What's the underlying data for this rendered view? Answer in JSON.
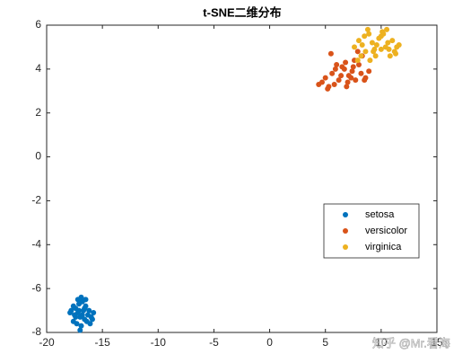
{
  "chart_data": {
    "type": "scatter",
    "title": "t-SNE二维分布",
    "xlim": [
      -20,
      15
    ],
    "xticks": [
      -20,
      -15,
      -10,
      -5,
      0,
      5,
      10,
      15
    ],
    "ylim": [
      -8,
      6
    ],
    "yticks": [
      -8,
      -6,
      -4,
      -2,
      0,
      2,
      4,
      6
    ],
    "legend": "east",
    "box": true,
    "series": [
      {
        "name": "setosa",
        "color": "#0072BD",
        "x": [
          -17.5,
          -17.2,
          -16.8,
          -16.5,
          -16.2,
          -17.9,
          -17.6,
          -17.0,
          -16.6,
          -16.3,
          -17.4,
          -17.1,
          -16.7,
          -16.0,
          -15.8,
          -17.8,
          -17.3,
          -16.9,
          -16.4,
          -16.1,
          -17.6,
          -17.2,
          -16.8,
          -16.5,
          -17.0,
          -16.6,
          -15.9,
          -17.4,
          -16.9,
          -17.1
        ],
        "values": [
          -7.2,
          -6.5,
          -6.6,
          -6.8,
          -7.0,
          -7.1,
          -7.5,
          -7.3,
          -7.4,
          -7.2,
          -6.9,
          -6.7,
          -7.0,
          -7.3,
          -7.1,
          -7.0,
          -7.6,
          -7.7,
          -7.5,
          -7.6,
          -6.8,
          -7.1,
          -7.2,
          -6.5,
          -7.9,
          -6.9,
          -7.4,
          -7.3,
          -6.4,
          -7.0
        ]
      },
      {
        "name": "versicolor",
        "color": "#D95319",
        "x": [
          4.4,
          4.7,
          5.0,
          5.3,
          5.6,
          5.9,
          6.2,
          6.5,
          6.8,
          7.1,
          7.4,
          7.7,
          8.0,
          8.3,
          8.6,
          8.9,
          5.2,
          5.8,
          6.4,
          7.0,
          7.6,
          8.2,
          6.0,
          6.7,
          7.3,
          7.9,
          5.5,
          6.9,
          8.5,
          7.5
        ],
        "values": [
          3.3,
          3.4,
          3.6,
          3.2,
          3.8,
          4.0,
          3.5,
          4.1,
          4.3,
          3.7,
          3.9,
          3.5,
          4.2,
          4.6,
          3.6,
          3.9,
          3.1,
          3.3,
          3.7,
          3.4,
          4.4,
          3.8,
          4.2,
          4.0,
          3.6,
          4.8,
          4.7,
          3.2,
          3.5,
          4.1
        ]
      },
      {
        "name": "virginica",
        "color": "#EDB120",
        "x": [
          7.6,
          8.0,
          8.3,
          8.6,
          8.9,
          9.2,
          9.5,
          9.8,
          10.1,
          10.4,
          10.7,
          11.0,
          11.3,
          11.6,
          8.2,
          8.8,
          9.4,
          10.0,
          10.6,
          11.2,
          9.0,
          9.6,
          10.2,
          10.8,
          11.4,
          8.5,
          9.3,
          10.5,
          7.9,
          10.0
        ],
        "values": [
          5.0,
          5.3,
          5.1,
          4.8,
          5.6,
          5.2,
          4.6,
          5.4,
          5.7,
          5.0,
          4.9,
          5.3,
          4.7,
          5.1,
          4.6,
          5.8,
          4.9,
          5.5,
          5.2,
          4.8,
          4.4,
          5.1,
          5.6,
          4.6,
          5.0,
          5.5,
          4.8,
          5.8,
          4.4,
          4.9
        ]
      }
    ],
    "watermark": "知乎 @Mr.看海"
  }
}
